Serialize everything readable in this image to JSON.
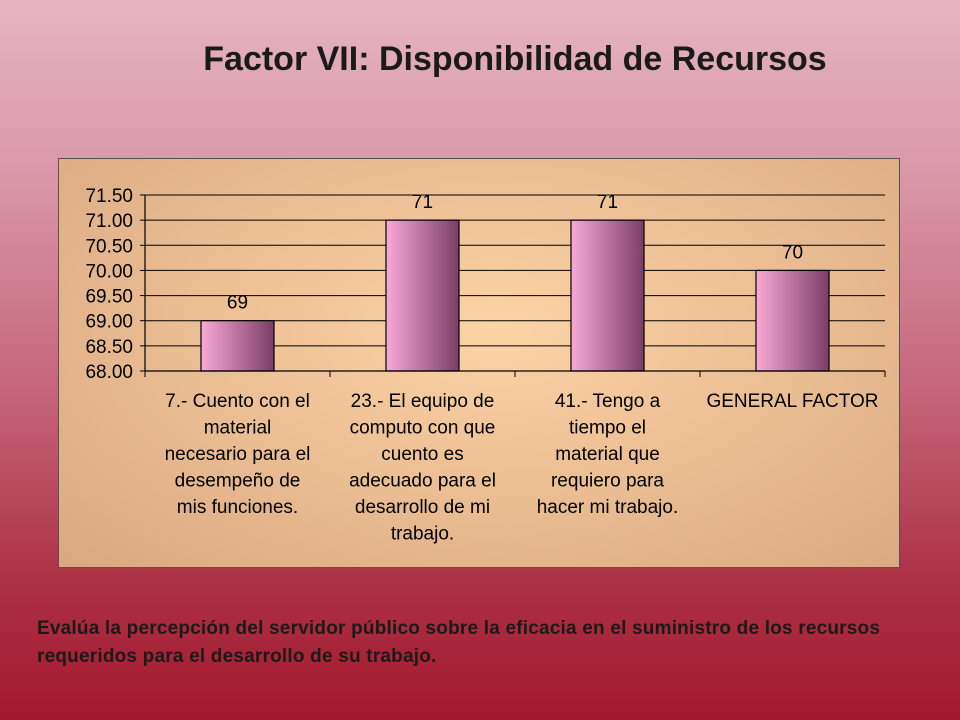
{
  "slide": {
    "title": "Factor VII: Disponibilidad de Recursos",
    "caption": "Evalúa la percepción del servidor público sobre la eficacia en el suministro de los recursos requeridos para el desarrollo de su trabajo."
  },
  "colors": {
    "bar_light": "#f9a9d6",
    "bar_dark": "#7a3e66",
    "gridline": "#000000"
  },
  "chart_data": {
    "type": "bar",
    "categories": [
      [
        "7.- Cuento con el",
        "material",
        "necesario para el",
        "desempeño de",
        "mis funciones."
      ],
      [
        "23.- El equipo de",
        "computo con que",
        "cuento es",
        "adecuado para el",
        "desarrollo de mi",
        "trabajo."
      ],
      [
        "41.- Tengo a",
        "tiempo el",
        "material que",
        "requiero para",
        "hacer mi trabajo."
      ],
      [
        "GENERAL FACTOR"
      ]
    ],
    "values": [
      69,
      71,
      71,
      70
    ],
    "data_labels": [
      "69",
      "71",
      "71",
      "70"
    ],
    "ylim": [
      68,
      71.5
    ],
    "yticks": [
      "68.00",
      "68.50",
      "69.00",
      "69.50",
      "70.00",
      "70.50",
      "71.00",
      "71.50"
    ],
    "grid": true,
    "legend": false
  }
}
